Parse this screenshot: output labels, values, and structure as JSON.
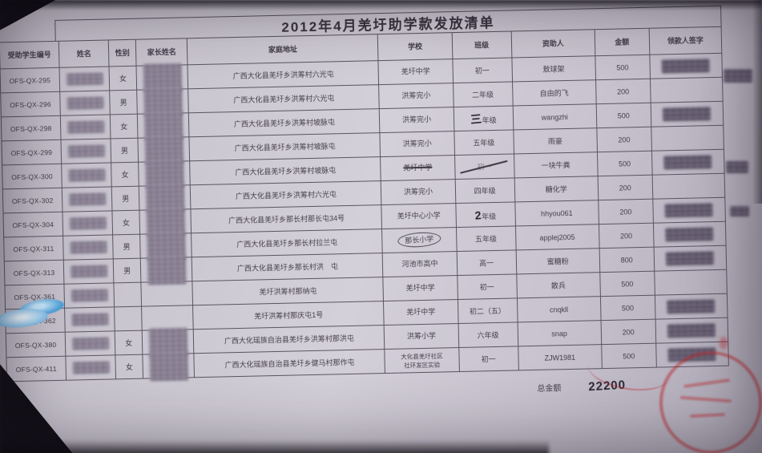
{
  "doc": {
    "title": "2012年4月羌圩助学款发放清单",
    "total_label": "总金额",
    "total_value": "22200"
  },
  "table": {
    "headers": [
      "受助学生编号",
      "姓名",
      "性别",
      "家长姓名",
      "家庭地址",
      "学校",
      "班级",
      "资助人",
      "金额",
      "领款人签字"
    ],
    "rows": [
      {
        "id": "OFS-QX-295",
        "gender": "女",
        "address": "广西大化县羌圩乡洪筹村六光屯",
        "school": "羌圩中学",
        "grade": "初一",
        "sponsor": "敖球架",
        "amount": "500",
        "name_blur": true,
        "parent_blur": true,
        "sig_blur": true
      },
      {
        "id": "OFS-QX-296",
        "gender": "男",
        "address": "广西大化县羌圩乡洪筹村六光屯",
        "school": "洪筹完小",
        "grade": "二年级",
        "sponsor": "自由的飞",
        "amount": "200",
        "name_blur": true,
        "parent_blur": true,
        "sig_blur": false
      },
      {
        "id": "OFS-QX-298",
        "gender": "女",
        "address": "广西大化县羌圩乡洪筹村坡脉屯",
        "school": "洪筹完小",
        "grade": "年级",
        "grade_hand": "三",
        "sponsor": "wangzhi",
        "amount": "500",
        "name_blur": true,
        "parent_blur": true,
        "sig_blur": true
      },
      {
        "id": "OFS-QX-299",
        "gender": "男",
        "address": "广西大化县羌圩乡洪筹村坡脉屯",
        "school": "洪筹完小",
        "grade": "五年级",
        "sponsor": "雨豪",
        "amount": "200",
        "name_blur": true,
        "parent_blur": true,
        "sig_blur": false
      },
      {
        "id": "OFS-QX-300",
        "gender": "女",
        "address": "广西大化县羌圩乡洪筹村坡脉屯",
        "school": "羌圩中学",
        "grade": "初一",
        "sponsor": "一块牛粪",
        "amount": "500",
        "name_blur": true,
        "parent_blur": true,
        "sig_blur": true,
        "school_strike": true,
        "grade_slash": true
      },
      {
        "id": "OFS-QX-302",
        "gender": "男",
        "address": "广西大化县羌圩乡洪筹村六光屯",
        "school": "洪筹完小",
        "grade": "四年级",
        "sponsor": "糖化学",
        "amount": "200",
        "name_blur": true,
        "parent_blur": true,
        "sig_blur": false
      },
      {
        "id": "OFS-QX-304",
        "gender": "女",
        "address": "广西大化县羌圩乡那长村那长屯34号",
        "school": "羌圩中心小学",
        "grade": "年级",
        "grade_hand": "2",
        "sponsor": "hhyou061",
        "amount": "200",
        "name_blur": true,
        "parent_blur": true,
        "sig_blur": true
      },
      {
        "id": "OFS-QX-311",
        "gender": "男",
        "address": "广西大化县羌圩乡那长村拉兰屯",
        "school": "那长小学",
        "grade": "五年级",
        "sponsor": "applej2005",
        "amount": "200",
        "name_blur": true,
        "parent_blur": true,
        "sig_blur": true,
        "school_circle": true
      },
      {
        "id": "OFS-QX-313",
        "gender": "男",
        "address": "广西大化县羌圩乡那长村洪　屯",
        "school": "河池市高中",
        "grade": "高一",
        "sponsor": "蜜糖粉",
        "amount": "800",
        "name_blur": true,
        "parent_blur": true,
        "sig_blur": true
      },
      {
        "id": "OFS-QX-361",
        "gender": "",
        "address": "羌圩洪筹村那纳屯",
        "school": "羌圩中学",
        "grade": "初一",
        "sponsor": "散兵",
        "amount": "500",
        "name_blur": true,
        "parent_blur": false,
        "sig_blur": false
      },
      {
        "id": "OFS-QX-362",
        "gender": "",
        "address": "羌圩洪筹村那庆屯1号",
        "school": "羌圩中学",
        "grade": "初二（五）",
        "sponsor": "cnqkll",
        "amount": "500",
        "name_blur": true,
        "parent_blur": false,
        "sig_blur": true
      },
      {
        "id": "OFS-QX-380",
        "gender": "女",
        "address": "广西大化瑶族自治县羌圩乡洪筹村那洪屯",
        "school": "洪筹小学",
        "grade": "六年级",
        "sponsor": "snap",
        "amount": "200",
        "name_blur": true,
        "parent_blur": true,
        "sig_blur": true
      },
      {
        "id": "OFS-QX-411",
        "gender": "女",
        "address": "广西大化瑶族自治县羌圩乡健马村那作屯",
        "school": "大化县羌圩社区\n社环发区实验",
        "grade": "初一",
        "sponsor": "ZJW1981",
        "amount": "500",
        "name_blur": true,
        "parent_blur": true,
        "sig_blur": true
      }
    ]
  }
}
